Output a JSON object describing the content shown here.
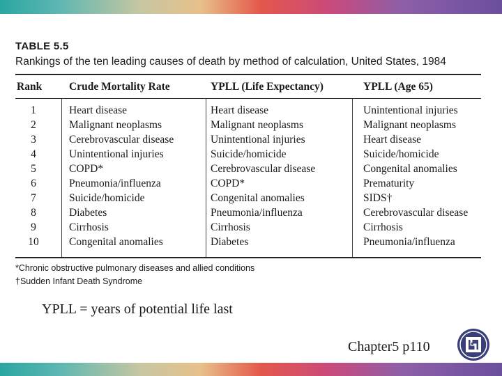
{
  "table": {
    "title": "TABLE 5.5",
    "caption": "Rankings of the ten leading causes of death by method of calculation, United States, 1984",
    "headers": [
      "Rank",
      "Crude Mortality Rate",
      "YPLL (Life Expectancy)",
      "YPLL (Age 65)"
    ],
    "ranks": [
      "1",
      "2",
      "3",
      "4",
      "5",
      "6",
      "7",
      "8",
      "9",
      "10"
    ],
    "crude_mortality_rate": [
      "Heart disease",
      "Malignant neoplasms",
      "Cerebrovascular disease",
      "Unintentional injuries",
      "COPD*",
      "Pneumonia/influenza",
      "Suicide/homicide",
      "Diabetes",
      "Cirrhosis",
      "Congenital anomalies"
    ],
    "ypll_life_expectancy": [
      "Heart disease",
      "Malignant neoplasms",
      "Unintentional injuries",
      "Suicide/homicide",
      "Cerebrovascular disease",
      "COPD*",
      "Congenital anomalies",
      "Pneumonia/influenza",
      "Cirrhosis",
      "Diabetes"
    ],
    "ypll_age_65": [
      "Unintentional injuries",
      "Malignant neoplasms",
      "Heart disease",
      "Suicide/homicide",
      "Congenital anomalies",
      "Prematurity",
      "SIDS†",
      "Cerebrovascular disease",
      "Cirrhosis",
      "Pneumonia/influenza"
    ],
    "footnotes": [
      "*Chronic obstructive pulmonary diseases and allied conditions",
      "†Sudden Infant Death Syndrome"
    ]
  },
  "note": "YPLL = years of potential life last",
  "chapter": "Chapter5 p110",
  "colors": {
    "bar_start": "#2aa6a0",
    "bar_mid": "#e4574b",
    "bar_end": "#6b4f9e",
    "logo": "#3a3f7a"
  },
  "icons": {
    "logo": "university-logo-icon"
  }
}
